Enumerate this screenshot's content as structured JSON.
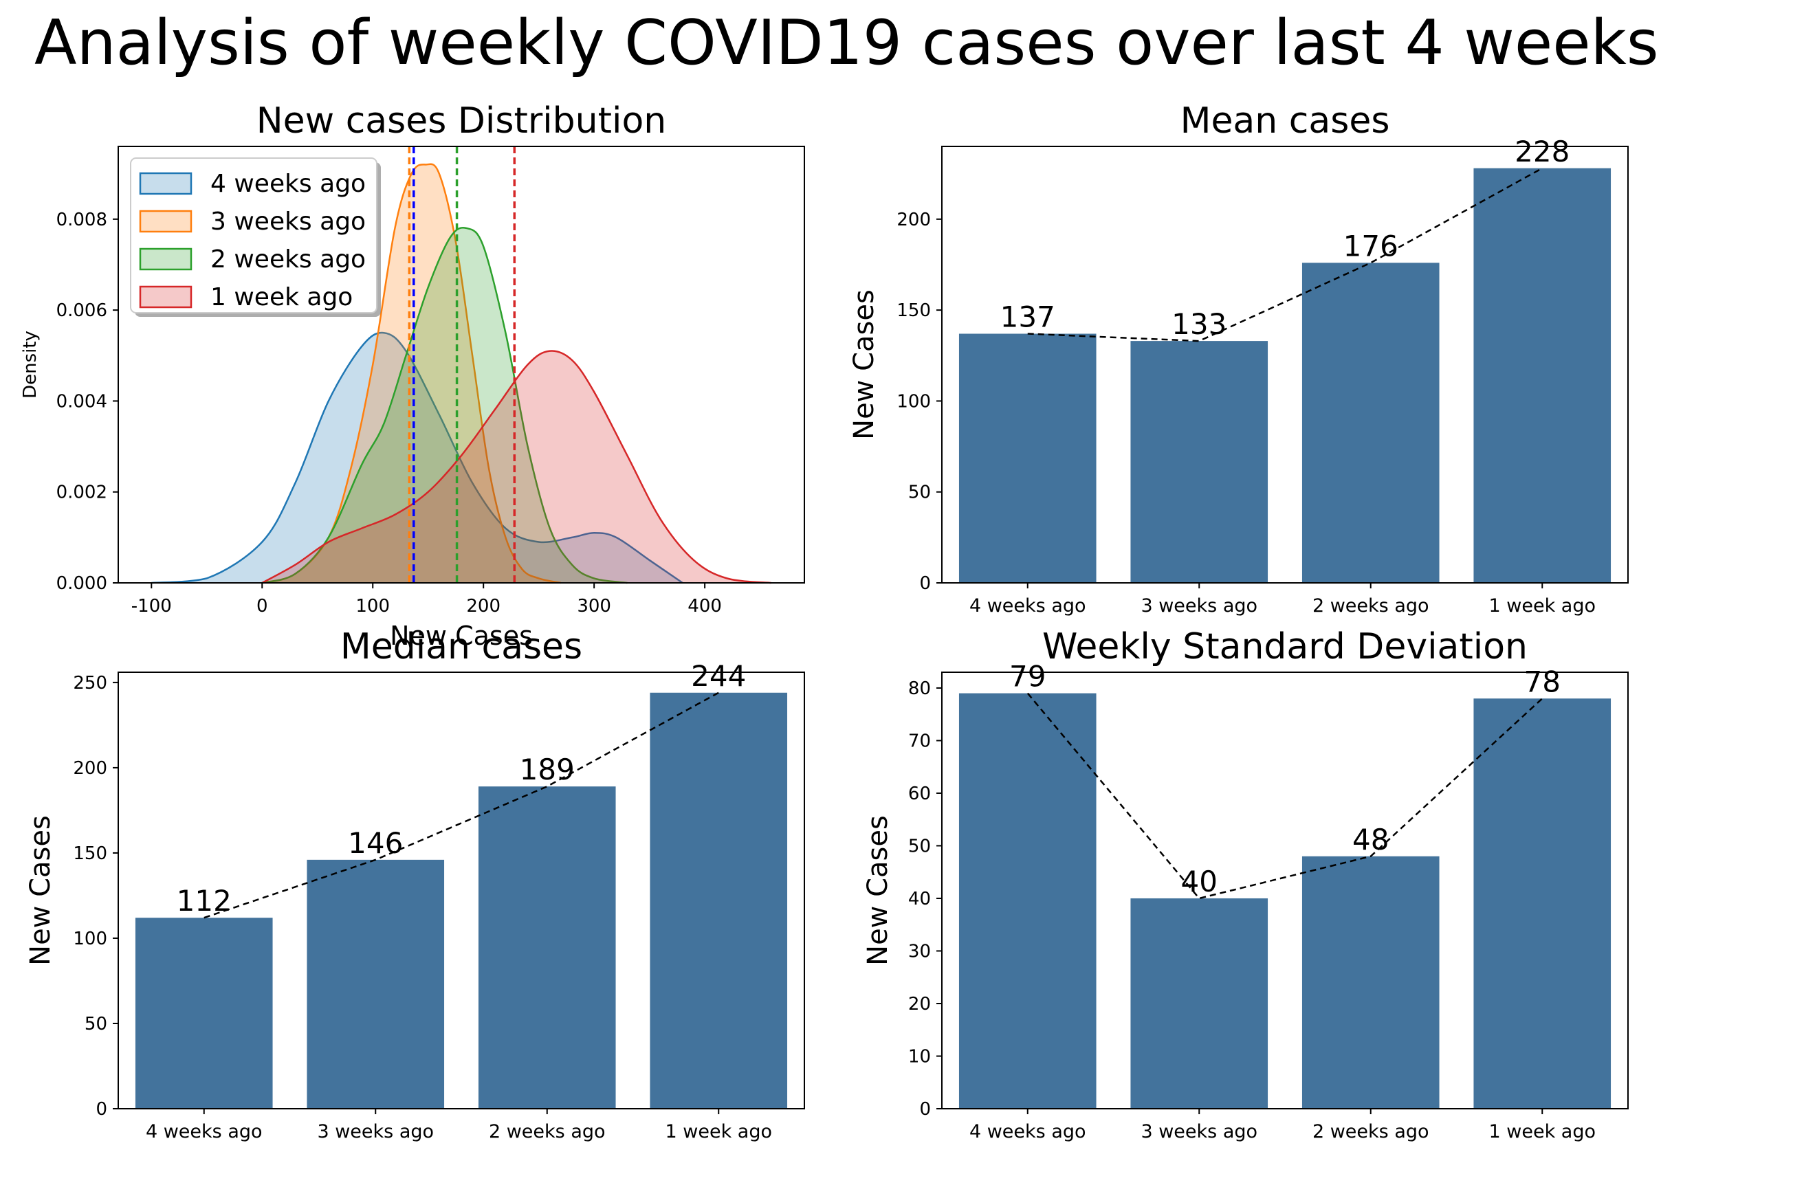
{
  "title": "Analysis of weekly COVID19 cases over last 4 weeks",
  "colors": {
    "bar": "#43739C",
    "week4": "#1f77b4",
    "week3": "#ff7f0e",
    "week2": "#2ca02c",
    "week1": "#d62728",
    "mean_line_week4": "#0000ff",
    "trend_line": "#000000"
  },
  "chart_data": [
    {
      "id": "kde",
      "type": "area",
      "title": "New cases Distribution",
      "xlabel": "New Cases",
      "ylabel": "Density",
      "xlim": [
        -130,
        490
      ],
      "ylim": [
        0,
        0.0096
      ],
      "xticks": [
        -100,
        0,
        100,
        200,
        300,
        400
      ],
      "yticks": [
        0.0,
        0.002,
        0.004,
        0.006,
        0.008
      ],
      "ytick_labels": [
        "0.000",
        "0.002",
        "0.004",
        "0.006",
        "0.008"
      ],
      "legend": {
        "position": "top-left",
        "entries": [
          "4 weeks ago",
          "3 weeks ago",
          "2 weeks ago",
          "1 week ago"
        ]
      },
      "series": [
        {
          "name": "4 weeks ago",
          "color_key": "week4",
          "x": [
            -100,
            -50,
            0,
            30,
            60,
            90,
            110,
            130,
            160,
            190,
            220,
            250,
            280,
            300,
            320,
            350,
            380
          ],
          "y": [
            0,
            0.0001,
            0.0009,
            0.0022,
            0.004,
            0.0052,
            0.0055,
            0.0051,
            0.0037,
            0.0022,
            0.0012,
            0.0009,
            0.001,
            0.0011,
            0.001,
            0.0005,
            0
          ]
        },
        {
          "name": "3 weeks ago",
          "color_key": "week3",
          "x": [
            0,
            30,
            60,
            80,
            100,
            120,
            135,
            148,
            160,
            175,
            190,
            205,
            220,
            235,
            250,
            270
          ],
          "y": [
            0,
            0.0002,
            0.001,
            0.0025,
            0.0048,
            0.0078,
            0.009,
            0.0092,
            0.009,
            0.0075,
            0.005,
            0.0025,
            0.001,
            0.0003,
            0.0001,
            0
          ]
        },
        {
          "name": "2 weeks ago",
          "color_key": "week2",
          "x": [
            0,
            30,
            60,
            90,
            110,
            130,
            150,
            170,
            185,
            200,
            220,
            240,
            260,
            280,
            300,
            330
          ],
          "y": [
            0,
            0.0002,
            0.001,
            0.0026,
            0.0035,
            0.005,
            0.0065,
            0.0076,
            0.0078,
            0.0074,
            0.0055,
            0.003,
            0.0012,
            0.0004,
            0.0001,
            0
          ]
        },
        {
          "name": "1 week ago",
          "color_key": "week1",
          "x": [
            0,
            30,
            60,
            90,
            120,
            150,
            180,
            210,
            240,
            260,
            280,
            300,
            330,
            360,
            390,
            420,
            460
          ],
          "y": [
            0,
            0.0004,
            0.0009,
            0.0012,
            0.0015,
            0.002,
            0.0028,
            0.0038,
            0.0048,
            0.0051,
            0.0049,
            0.0042,
            0.0028,
            0.0014,
            0.0005,
            0.0001,
            0
          ]
        }
      ],
      "mean_lines": [
        {
          "x": 133,
          "color_key": "week3"
        },
        {
          "x": 137,
          "color_key": "mean_line_week4"
        },
        {
          "x": 176,
          "color_key": "week2"
        },
        {
          "x": 228,
          "color_key": "week1"
        }
      ]
    },
    {
      "id": "mean",
      "type": "bar",
      "title": "Mean cases",
      "xlabel": "",
      "ylabel": "New Cases",
      "categories": [
        "4 weeks ago",
        "3 weeks ago",
        "2 weeks ago",
        "1 week ago"
      ],
      "values": [
        137,
        133,
        176,
        228
      ],
      "ylim": [
        0,
        240
      ],
      "yticks": [
        0,
        50,
        100,
        150,
        200
      ],
      "value_labels": [
        "137",
        "133",
        "176",
        "228"
      ]
    },
    {
      "id": "median",
      "type": "bar",
      "title": "Median cases",
      "xlabel": "",
      "ylabel": "New Cases",
      "categories": [
        "4 weeks ago",
        "3 weeks ago",
        "2 weeks ago",
        "1 week ago"
      ],
      "values": [
        112,
        146,
        189,
        244
      ],
      "ylim": [
        0,
        256
      ],
      "yticks": [
        0,
        50,
        100,
        150,
        200,
        250
      ],
      "value_labels": [
        "112",
        "146",
        "189",
        "244"
      ]
    },
    {
      "id": "std",
      "type": "bar",
      "title": "Weekly Standard Deviation",
      "xlabel": "",
      "ylabel": "New Cases",
      "categories": [
        "4 weeks ago",
        "3 weeks ago",
        "2 weeks ago",
        "1 week ago"
      ],
      "values": [
        79,
        40,
        48,
        78
      ],
      "ylim": [
        0,
        83
      ],
      "yticks": [
        0,
        10,
        20,
        30,
        40,
        50,
        60,
        70,
        80
      ],
      "value_labels": [
        "79",
        "40",
        "48",
        "78"
      ]
    }
  ]
}
